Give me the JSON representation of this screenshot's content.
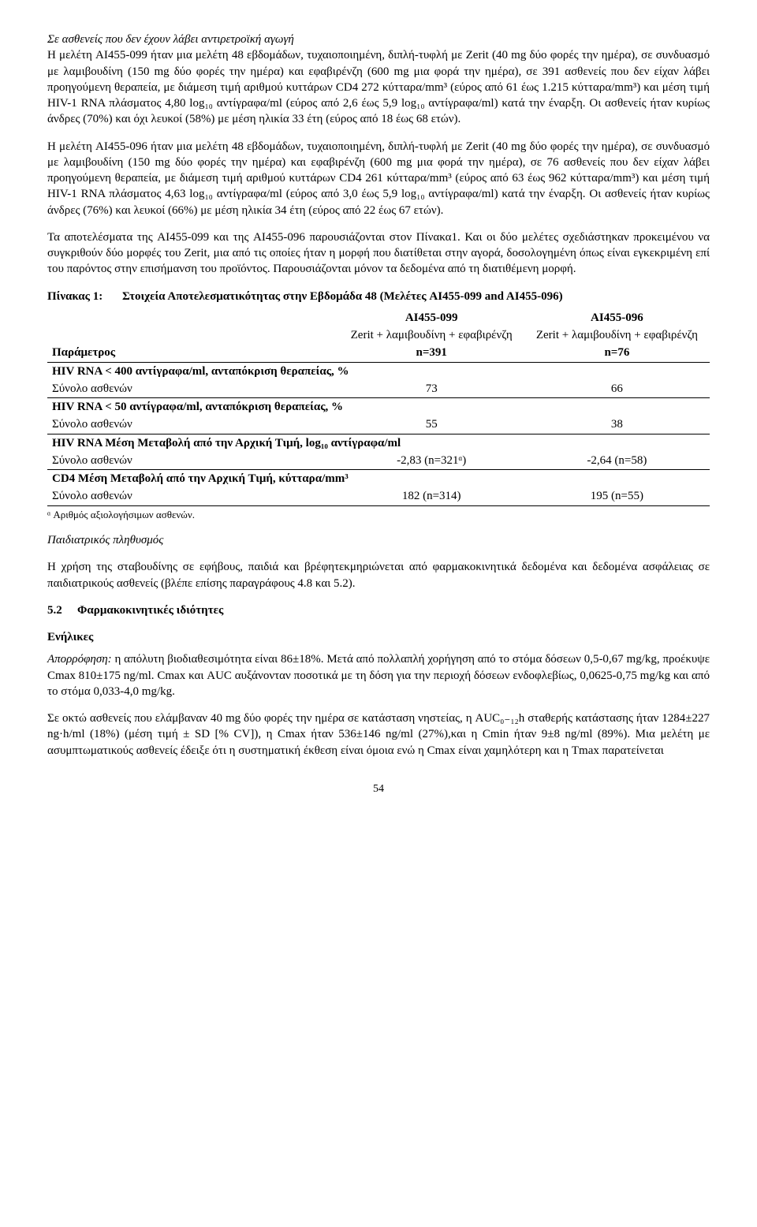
{
  "p1_lead": "Σε ασθενείς που δεν έχουν λάβει αντιρετροϊκή αγωγή",
  "p1": "Η μελέτη AI455-099 ήταν μια μελέτη 48 εβδομάδων, τυχαιοποιημένη, διπλή-τυφλή με Zerit (40 mg δύο φορές την ημέρα), σε συνδυασμό με λαμιβουδίνη (150 mg δύο φορές την ημέρα) και εφαβιρένζη (600 mg μια φορά την ημέρα), σε 391 ασθενείς που δεν είχαν λάβει προηγούμενη θεραπεία, με διάμεση τιμή αριθμού κυττάρων CD4 272 κύτταρα/mm³ (εύρος από 61 έως 1.215 κύτταρα/mm³) και μέση τιμή HIV-1 RNA πλάσματος 4,80 log₁₀ αντίγραφα/ml (εύρος από 2,6 έως 5,9 log₁₀ αντίγραφα/ml) κατά την έναρξη. Οι ασθενείς ήταν κυρίως άνδρες (70%) και όχι λευκοί (58%) με μέση ηλικία 33 έτη (εύρος από 18 έως 68 ετών).",
  "p2": "Η μελέτη AI455-096 ήταν μια μελέτη 48 εβδομάδων, τυχαιοποιημένη, διπλή-τυφλή με Zerit (40 mg δύο φορές την ημέρα), σε συνδυασμό με λαμιβουδίνη (150 mg δύο φορές την ημέρα) και εφαβιρένζη (600 mg μια φορά την ημέρα), σε 76 ασθενείς που δεν είχαν λάβει προηγούμενη θεραπεία, με διάμεση τιμή αριθμού κυττάρων CD4 261 κύτταρα/mm³ (εύρος από 63 έως 962 κύτταρα/mm³) και μέση τιμή HIV-1 RNA πλάσματος 4,63 log₁₀ αντίγραφα/ml (εύρος από 3,0 έως 5,9 log₁₀ αντίγραφα/ml) κατά την έναρξη. Οι ασθενείς ήταν κυρίως άνδρες (76%) και λευκοί (66%) με μέση ηλικία 34 έτη (εύρος από 22 έως 67 ετών).",
  "p3": "Τα αποτελέσματα της AI455-099 και της AI455-096 παρουσιάζονται στον Πίνακα1. Και οι δύο μελέτες σχεδιάστηκαν προκειμένου να συγκριθούν δύο μορφές του Zerit, μια από τις οποίες ήταν η μορφή που διατίθεται στην αγορά, δοσολογημένη όπως είναι εγκεκριμένη επί του παρόντος στην επισήμανση του προϊόντος. Παρουσιάζονται μόνον τα δεδομένα από τη διατιθέμενη μορφή.",
  "table": {
    "label": "Πίνακας 1:",
    "title": "Στοιχεία Αποτελεσματικότητας στην Εβδομάδα 48 (Μελέτες AI455-099 and AI455-096)",
    "colA_h1": "AI455-099",
    "colB_h1": "AI455-096",
    "colA_h2": "Zerit + λαμιβουδίνη + εφαβιρένζη",
    "colB_h2": "Zerit + λαμιβουδίνη + εφαβιρένζη",
    "param_label": "Παράμετρος",
    "colA_n": "n=391",
    "colB_n": "n=76",
    "sub1": "HIV RNA < 400 αντίγραφα/ml, ανταπόκριση θεραπείας, %",
    "r1_label": "Σύνολο ασθενών",
    "r1_a": "73",
    "r1_b": "66",
    "sub2": "HIV RNA < 50 αντίγραφα/ml, ανταπόκριση θεραπείας, %",
    "r2_label": "Σύνολο ασθενών",
    "r2_a": "55",
    "r2_b": "38",
    "sub3": "HIV RNA Μέση Μεταβολή από την Αρχική Τιμή, log₁₀ αντίγραφα/ml",
    "r3_label": "Σύνολο ασθενών",
    "r3_a": "-2,83 (n=321ᵅ)",
    "r3_b": "-2,64 (n=58)",
    "sub4": "CD4 Μέση Μεταβολή από την Αρχική Τιμή, κύτταρα/mm³",
    "r4_label": "Σύνολο ασθενών",
    "r4_a": "182 (n=314)",
    "r4_b": "195 (n=55)",
    "footnote": "ᵅ Αριθμός αξιολογήσιμων ασθενών."
  },
  "ped_heading": "Παιδιατρικός πληθυσμός",
  "p_ped": "Η χρήση της σταβουδίνης σε εφήβους, παιδιά και βρέφητεκμηριώνεται από φαρμακοκινητικά δεδομένα και δεδομένα ασφάλειας σε παιδιατρικούς ασθενείς (βλέπε επίσης παραγράφους 4.8 και 5.2).",
  "sec52_num": "5.2",
  "sec52_title": "Φαρμακοκινητικές ιδιότητες",
  "adults_heading": "Ενήλικες",
  "abs_label": "Απορρόφηση:",
  "p_abs": " η απόλυτη βιοδιαθεσιμότητα είναι 86±18%. Μετά από πολλαπλή χορήγηση από το στόμα δόσεων 0,5-0,67 mg/kg, προέκυψε Cmax 810±175 ng/ml. Cmax και AUC αυξάνονταν ποσοτικά με τη δόση για την περιοχή δόσεων ενδοφλεβίως, 0,0625-0,75 mg/kg και από το στόμα 0,033-4,0 mg/kg.",
  "p_abs2": "Σε οκτώ ασθενείς που ελάμβαναν 40 mg δύο φορές την ημέρα σε κατάσταση νηστείας, η AUC₀₋₁₂h σταθερής κατάστασης ήταν 1284±227 ng·h/ml (18%) (μέση τιμή ± SD [% CV]), η Cmax ήταν 536±146 ng/ml (27%),και η Cmin ήταν 9±8 ng/ml (89%). Μια μελέτη με ασυμπτωματικούς ασθενείς έδειξε ότι η συστηματική έκθεση είναι όμοια ενώ η Cmax είναι χαμηλότερη και η Tmax παρατείνεται",
  "page_number": "54"
}
